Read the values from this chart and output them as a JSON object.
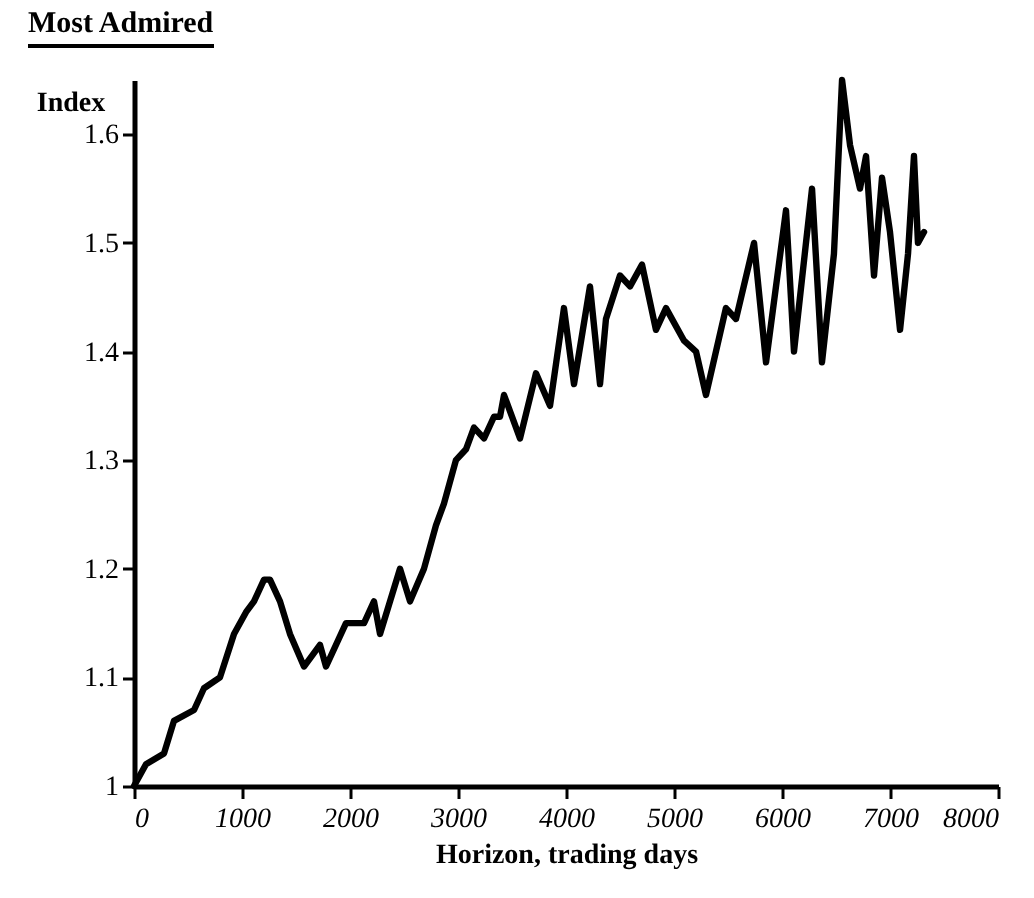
{
  "chart_data": {
    "type": "line",
    "title": "Most Admired",
    "xlabel": "Horizon, trading days",
    "ylabel": "Index",
    "x": [
      0,
      111,
      278,
      370,
      556,
      648,
      796,
      926,
      1037,
      1111,
      1204,
      1259,
      1352,
      1444,
      1574,
      1722,
      1778,
      1963,
      2130,
      2222,
      2278,
      2463,
      2556,
      2685,
      2796,
      2870,
      2981,
      3074,
      3148,
      3241,
      3333,
      3389,
      3426,
      3574,
      3722,
      3852,
      3981,
      4074,
      4222,
      4315,
      4370,
      4500,
      4593,
      4704,
      4833,
      4926,
      5093,
      5204,
      5296,
      5481,
      5574,
      5741,
      5852,
      6037,
      6111,
      6222,
      6278,
      6370,
      6481,
      6556,
      6630,
      6722,
      6778,
      6852,
      6926,
      7000,
      7093,
      7167,
      7222,
      7259,
      7315
    ],
    "series": [
      {
        "color": "#000000",
        "values": [
          1.0,
          1.02,
          1.03,
          1.06,
          1.07,
          1.09,
          1.1,
          1.14,
          1.16,
          1.17,
          1.19,
          1.19,
          1.17,
          1.14,
          1.11,
          1.13,
          1.11,
          1.15,
          1.15,
          1.17,
          1.14,
          1.2,
          1.17,
          1.2,
          1.24,
          1.26,
          1.3,
          1.31,
          1.33,
          1.32,
          1.34,
          1.34,
          1.36,
          1.32,
          1.38,
          1.35,
          1.44,
          1.37,
          1.46,
          1.37,
          1.43,
          1.47,
          1.46,
          1.48,
          1.42,
          1.44,
          1.41,
          1.4,
          1.36,
          1.44,
          1.43,
          1.5,
          1.39,
          1.53,
          1.4,
          1.5,
          1.55,
          1.39,
          1.49,
          1.65,
          1.59,
          1.55,
          1.58,
          1.47,
          1.56,
          1.51,
          1.42,
          1.49,
          1.58,
          1.5,
          1.51
        ]
      }
    ],
    "xlim": [
      0,
      8000
    ],
    "xticks": [
      0,
      1000,
      2000,
      3000,
      4000,
      5000,
      6000,
      7000,
      8000
    ],
    "ylim": [
      1,
      1.65
    ],
    "yticks": [
      1,
      1.1,
      1.2,
      1.3,
      1.4,
      1.5,
      1.6
    ],
    "grid": false,
    "legend": false,
    "marker": "none",
    "line_style": "solid"
  }
}
